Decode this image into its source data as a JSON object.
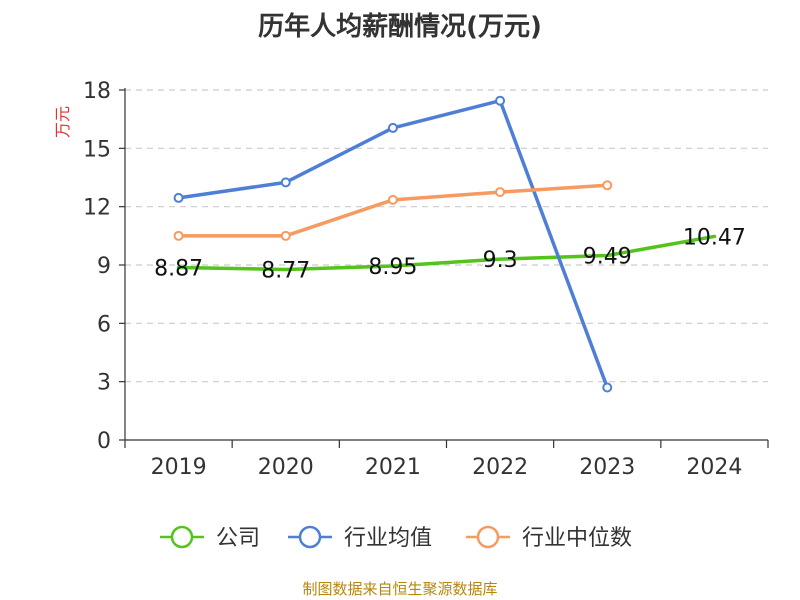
{
  "title": "历年人均薪酬情况(万元)",
  "footer": "制图数据来自恒生聚源数据库",
  "chart_data": {
    "type": "line",
    "categories": [
      "2019",
      "2020",
      "2021",
      "2022",
      "2023",
      "2024"
    ],
    "ylabel": "万元",
    "ylim": [
      0,
      18
    ],
    "yticks": [
      0,
      3,
      6,
      9,
      12,
      15,
      18
    ],
    "grid": true,
    "legend_position": "bottom",
    "series": [
      {
        "name": "公司",
        "color": "#52c41a",
        "values": [
          8.87,
          8.77,
          8.95,
          9.3,
          9.49,
          10.47
        ],
        "labels": [
          "8.87",
          "8.77",
          "8.95",
          "9.3",
          "9.49",
          "10.47"
        ],
        "show_markers": false
      },
      {
        "name": "行业均值",
        "color": "#4e7fd6",
        "values": [
          12.45,
          13.25,
          16.05,
          17.45,
          2.7,
          null
        ],
        "show_markers": true
      },
      {
        "name": "行业中位数",
        "color": "#f79a5f",
        "values": [
          10.5,
          10.5,
          12.35,
          12.75,
          13.1,
          null
        ],
        "show_markers": true
      }
    ]
  }
}
